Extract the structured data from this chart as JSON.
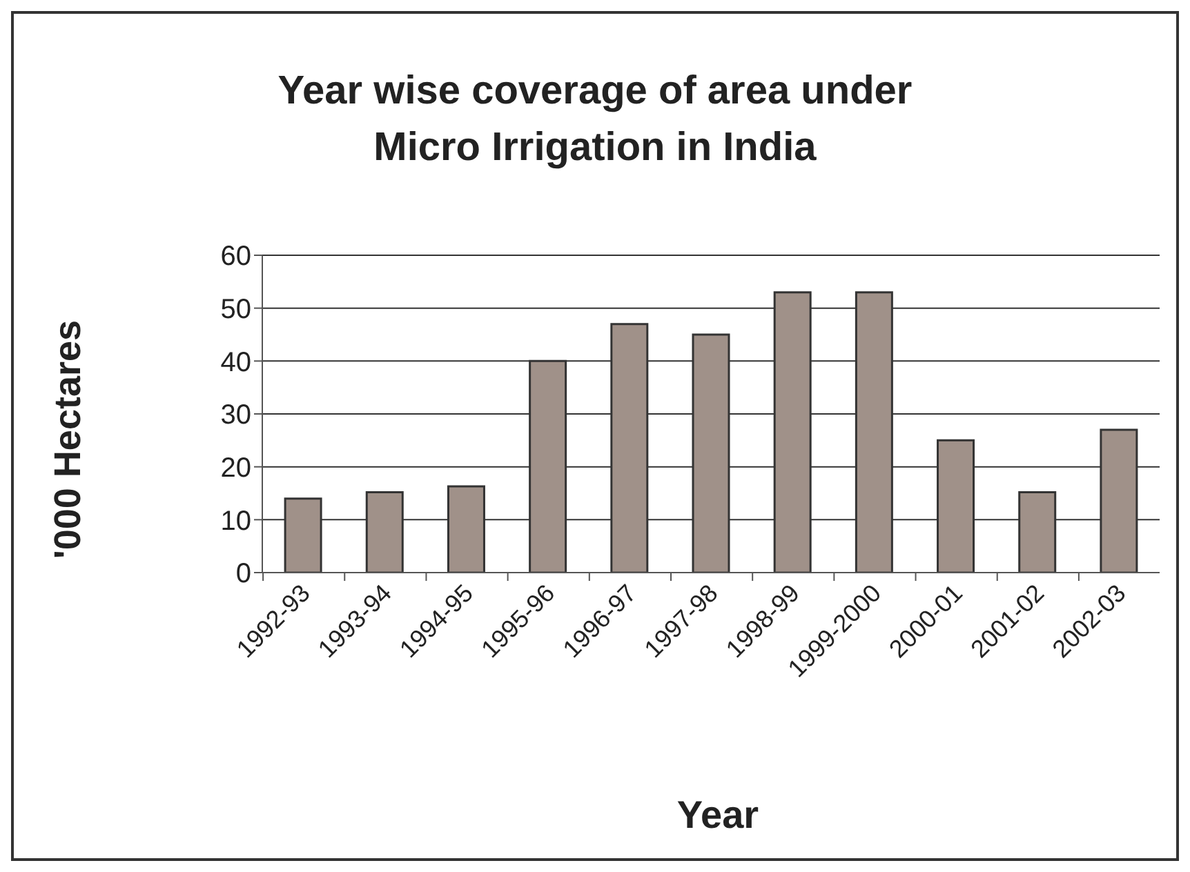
{
  "chart_data": {
    "type": "bar",
    "title": "Year wise coverage of area under Micro Irrigation in India",
    "xlabel": "Year",
    "ylabel": "'000 Hectares",
    "categories": [
      "1992-93",
      "1993-94",
      "1994-95",
      "1995-96",
      "1996-97",
      "1997-98",
      "1998-99",
      "1999-2000",
      "2000-01",
      "2001-02",
      "2002-03"
    ],
    "values": [
      14,
      15.2,
      16.3,
      40,
      47,
      45,
      53,
      53,
      25,
      15.2,
      27
    ],
    "color": "#a09189",
    "ylim": [
      0,
      60
    ],
    "yticks": [
      0,
      10,
      20,
      30,
      40,
      50,
      60
    ],
    "grid": "y"
  }
}
